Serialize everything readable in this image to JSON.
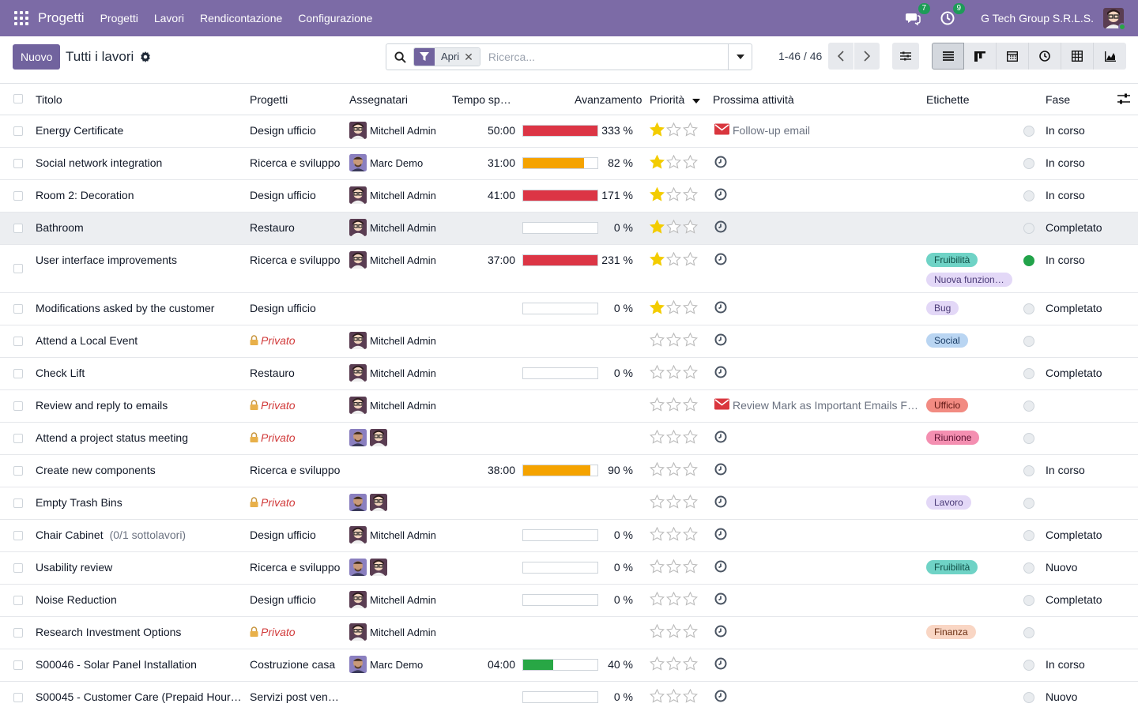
{
  "app": {
    "brand": "Progetti",
    "menu": [
      "Progetti",
      "Lavori",
      "Rendicontazione",
      "Configurazione"
    ],
    "messages_count": "7",
    "activities_count": "9",
    "company": "G Tech Group S.R.L.S."
  },
  "control": {
    "new_label": "Nuovo",
    "title": "Tutti i lavori",
    "facet_label": "Apri",
    "search_placeholder": "Ricerca...",
    "pager": "1-46 / 46"
  },
  "columns": {
    "title": "Titolo",
    "project": "Progetti",
    "assignees": "Assegnatari",
    "time": "Tempo sp…",
    "progress": "Avanzamento",
    "priority": "Priorità",
    "activity": "Prossima attività",
    "tags": "Etichette",
    "stage": "Fase"
  },
  "colors": {
    "brand": "#7c6ba6",
    "red": "#dc3545",
    "orange": "#f5a300",
    "green": "#28a745",
    "star": "#f3cc00"
  },
  "rows": [
    {
      "title": "Energy Certificate",
      "sub": "",
      "project": "Design ufficio",
      "private": false,
      "assignees": [
        {
          "who": "mitchell"
        }
      ],
      "assignee_name": "Mitchell Admin",
      "time": "50:00",
      "progress": 333,
      "progress_label": "333 %",
      "bar": "red",
      "stars": 1,
      "activity_type": "mail",
      "activity_text": "Follow-up email",
      "tags": [],
      "kanban": "grey",
      "stage": "In corso"
    },
    {
      "title": "Social network integration",
      "sub": "",
      "project": "Ricerca e sviluppo",
      "private": false,
      "assignees": [
        {
          "who": "marc"
        }
      ],
      "assignee_name": "Marc Demo",
      "time": "31:00",
      "progress": 82,
      "progress_label": "82 %",
      "bar": "orange",
      "stars": 1,
      "activity_type": "clock",
      "activity_text": "",
      "tags": [],
      "kanban": "grey",
      "stage": "In corso"
    },
    {
      "title": "Room 2: Decoration",
      "sub": "",
      "project": "Design ufficio",
      "private": false,
      "assignees": [
        {
          "who": "mitchell"
        }
      ],
      "assignee_name": "Mitchell Admin",
      "time": "41:00",
      "progress": 171,
      "progress_label": "171 %",
      "bar": "red",
      "stars": 1,
      "activity_type": "clock",
      "activity_text": "",
      "tags": [],
      "kanban": "grey",
      "stage": "In corso"
    },
    {
      "title": "Bathroom",
      "sub": "",
      "project": "Restauro",
      "private": false,
      "assignees": [
        {
          "who": "mitchell"
        }
      ],
      "assignee_name": "Mitchell Admin",
      "time": "",
      "progress": 0,
      "progress_label": "0 %",
      "bar": "none",
      "stars": 1,
      "activity_type": "clock",
      "activity_text": "",
      "tags": [],
      "kanban": "grey",
      "stage": "Completato",
      "highlight": true
    },
    {
      "title": "User interface improvements",
      "sub": "",
      "project": "Ricerca e sviluppo",
      "private": false,
      "assignees": [
        {
          "who": "mitchell"
        }
      ],
      "assignee_name": "Mitchell Admin",
      "time": "37:00",
      "progress": 231,
      "progress_label": "231 %",
      "bar": "red",
      "stars": 1,
      "activity_type": "clock",
      "activity_text": "",
      "tags": [
        {
          "label": "Fruibilità",
          "bg": "#6fd3c6",
          "fg": "#0f4d45"
        },
        {
          "label": "Nuova funzion…",
          "bg": "#e3d8f7",
          "fg": "#4a3a77"
        }
      ],
      "kanban": "green",
      "stage": "In corso",
      "tall": true
    },
    {
      "title": "Modifications asked by the customer",
      "sub": "",
      "project": "Design ufficio",
      "private": false,
      "assignees": [],
      "assignee_name": "",
      "time": "",
      "progress": 0,
      "progress_label": "0 %",
      "bar": "none",
      "stars": 1,
      "activity_type": "clock",
      "activity_text": "",
      "tags": [
        {
          "label": "Bug",
          "bg": "#e3d8f7",
          "fg": "#4a3a77"
        }
      ],
      "kanban": "grey",
      "stage": "Completato"
    },
    {
      "title": "Attend a Local Event",
      "sub": "",
      "project": "Privato",
      "private": true,
      "assignees": [
        {
          "who": "mitchell"
        }
      ],
      "assignee_name": "Mitchell Admin",
      "time": "",
      "progress": null,
      "progress_label": "",
      "bar": "hidden",
      "stars": 0,
      "activity_type": "clock",
      "activity_text": "",
      "tags": [
        {
          "label": "Social",
          "bg": "#b9d5f2",
          "fg": "#1c3e66"
        }
      ],
      "kanban": "grey",
      "stage": ""
    },
    {
      "title": "Check Lift",
      "sub": "",
      "project": "Restauro",
      "private": false,
      "assignees": [
        {
          "who": "mitchell"
        }
      ],
      "assignee_name": "Mitchell Admin",
      "time": "",
      "progress": 0,
      "progress_label": "0 %",
      "bar": "none",
      "stars": 0,
      "activity_type": "clock",
      "activity_text": "",
      "tags": [],
      "kanban": "grey",
      "stage": "Completato"
    },
    {
      "title": "Review and reply to emails",
      "sub": "",
      "project": "Privato",
      "private": true,
      "assignees": [
        {
          "who": "mitchell"
        }
      ],
      "assignee_name": "Mitchell Admin",
      "time": "",
      "progress": null,
      "progress_label": "",
      "bar": "hidden",
      "stars": 0,
      "activity_type": "mail",
      "activity_text": "Review Mark as Important Emails F…",
      "tags": [
        {
          "label": "Ufficio",
          "bg": "#f28b82",
          "fg": "#5a1410"
        }
      ],
      "kanban": "grey",
      "stage": ""
    },
    {
      "title": "Attend a project status meeting",
      "sub": "",
      "project": "Privato",
      "private": true,
      "assignees": [
        {
          "who": "marc"
        },
        {
          "who": "mitchell"
        }
      ],
      "assignee_name": "",
      "time": "",
      "progress": null,
      "progress_label": "",
      "bar": "hidden",
      "stars": 0,
      "activity_type": "clock",
      "activity_text": "",
      "tags": [
        {
          "label": "Riunione",
          "bg": "#f48fb1",
          "fg": "#5a1030"
        }
      ],
      "kanban": "grey",
      "stage": ""
    },
    {
      "title": "Create new components",
      "sub": "",
      "project": "Ricerca e sviluppo",
      "private": false,
      "assignees": [],
      "assignee_name": "",
      "time": "38:00",
      "progress": 90,
      "progress_label": "90 %",
      "bar": "orange",
      "stars": 0,
      "activity_type": "clock",
      "activity_text": "",
      "tags": [],
      "kanban": "grey",
      "stage": "In corso"
    },
    {
      "title": "Empty Trash Bins",
      "sub": "",
      "project": "Privato",
      "private": true,
      "assignees": [
        {
          "who": "marc"
        },
        {
          "who": "mitchell"
        }
      ],
      "assignee_name": "",
      "time": "",
      "progress": null,
      "progress_label": "",
      "bar": "hidden",
      "stars": 0,
      "activity_type": "clock",
      "activity_text": "",
      "tags": [
        {
          "label": "Lavoro",
          "bg": "#e3d8f7",
          "fg": "#4a3a77"
        }
      ],
      "kanban": "grey",
      "stage": ""
    },
    {
      "title": "Chair Cabinet",
      "sub": "(0/1 sottolavori)",
      "project": "Design ufficio",
      "private": false,
      "assignees": [
        {
          "who": "mitchell"
        }
      ],
      "assignee_name": "Mitchell Admin",
      "time": "",
      "progress": 0,
      "progress_label": "0 %",
      "bar": "none",
      "stars": 0,
      "activity_type": "clock",
      "activity_text": "",
      "tags": [],
      "kanban": "grey",
      "stage": "Completato"
    },
    {
      "title": "Usability review",
      "sub": "",
      "project": "Ricerca e sviluppo",
      "private": false,
      "assignees": [
        {
          "who": "marc"
        },
        {
          "who": "mitchell"
        }
      ],
      "assignee_name": "",
      "time": "",
      "progress": 0,
      "progress_label": "0 %",
      "bar": "none",
      "stars": 0,
      "activity_type": "clock",
      "activity_text": "",
      "tags": [
        {
          "label": "Fruibilità",
          "bg": "#6fd3c6",
          "fg": "#0f4d45"
        }
      ],
      "kanban": "grey",
      "stage": "Nuovo"
    },
    {
      "title": "Noise Reduction",
      "sub": "",
      "project": "Design ufficio",
      "private": false,
      "assignees": [
        {
          "who": "mitchell"
        }
      ],
      "assignee_name": "Mitchell Admin",
      "time": "",
      "progress": 0,
      "progress_label": "0 %",
      "bar": "none",
      "stars": 0,
      "activity_type": "clock",
      "activity_text": "",
      "tags": [],
      "kanban": "grey",
      "stage": "Completato"
    },
    {
      "title": "Research Investment Options",
      "sub": "",
      "project": "Privato",
      "private": true,
      "assignees": [
        {
          "who": "mitchell"
        }
      ],
      "assignee_name": "Mitchell Admin",
      "time": "",
      "progress": null,
      "progress_label": "",
      "bar": "hidden",
      "stars": 0,
      "activity_type": "clock",
      "activity_text": "",
      "tags": [
        {
          "label": "Finanza",
          "bg": "#f9d6c4",
          "fg": "#6b2f12"
        }
      ],
      "kanban": "grey",
      "stage": ""
    },
    {
      "title": "S00046 - Solar Panel Installation",
      "sub": "",
      "project": "Costruzione casa",
      "private": false,
      "assignees": [
        {
          "who": "marc"
        }
      ],
      "assignee_name": "Marc Demo",
      "time": "04:00",
      "progress": 40,
      "progress_label": "40 %",
      "bar": "green",
      "stars": 0,
      "activity_type": "clock",
      "activity_text": "",
      "tags": [],
      "kanban": "grey",
      "stage": "In corso"
    },
    {
      "title": "S00045 - Customer Care (Prepaid Hour…",
      "sub": "",
      "project": "Servizi post ven…",
      "private": false,
      "assignees": [],
      "assignee_name": "",
      "time": "",
      "progress": 0,
      "progress_label": "0 %",
      "bar": "none",
      "stars": 0,
      "activity_type": "clock",
      "activity_text": "",
      "tags": [],
      "kanban": "grey",
      "stage": "Nuovo"
    }
  ]
}
